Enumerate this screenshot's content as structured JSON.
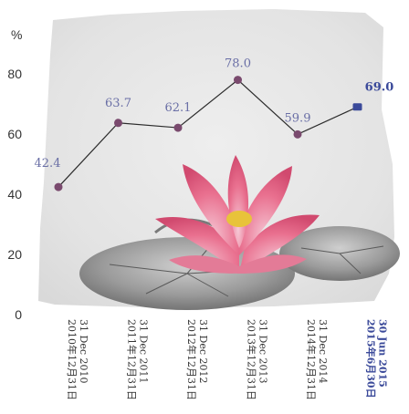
{
  "chart_data": {
    "type": "line",
    "unit": "%",
    "x": [
      {
        "en": "31 Dec 2010",
        "zh": "2010年12月31日",
        "highlight": false
      },
      {
        "en": "31 Dec 2011",
        "zh": "2011年12月31日",
        "highlight": false
      },
      {
        "en": "31 Dec 2012",
        "zh": "2012年12月31日",
        "highlight": false
      },
      {
        "en": "31 Dec 2013",
        "zh": "2013年12月31日",
        "highlight": false
      },
      {
        "en": "31 Dec 2014",
        "zh": "2014年12月31日",
        "highlight": false
      },
      {
        "en": "30 Jun 2015",
        "zh": "2015年6月30日",
        "highlight": true
      }
    ],
    "values": [
      42.4,
      63.7,
      62.1,
      78.0,
      59.9,
      69.0
    ],
    "value_labels": [
      "42.4",
      "63.7",
      "62.1",
      "78.0",
      "59.9",
      "69.0"
    ],
    "yticks": [
      0,
      20,
      40,
      60,
      80
    ],
    "ylim": [
      0,
      100
    ],
    "grid": false,
    "colors": {
      "line": "#2b2b2b",
      "marker": "#7a4a6e",
      "marker_highlight": "#3b4a9a",
      "label": "#6a6fa6",
      "label_highlight": "#3b4a9a",
      "paper": "#e6e6e6"
    },
    "decoration": "lotus-and-lily-pads-illustration"
  }
}
